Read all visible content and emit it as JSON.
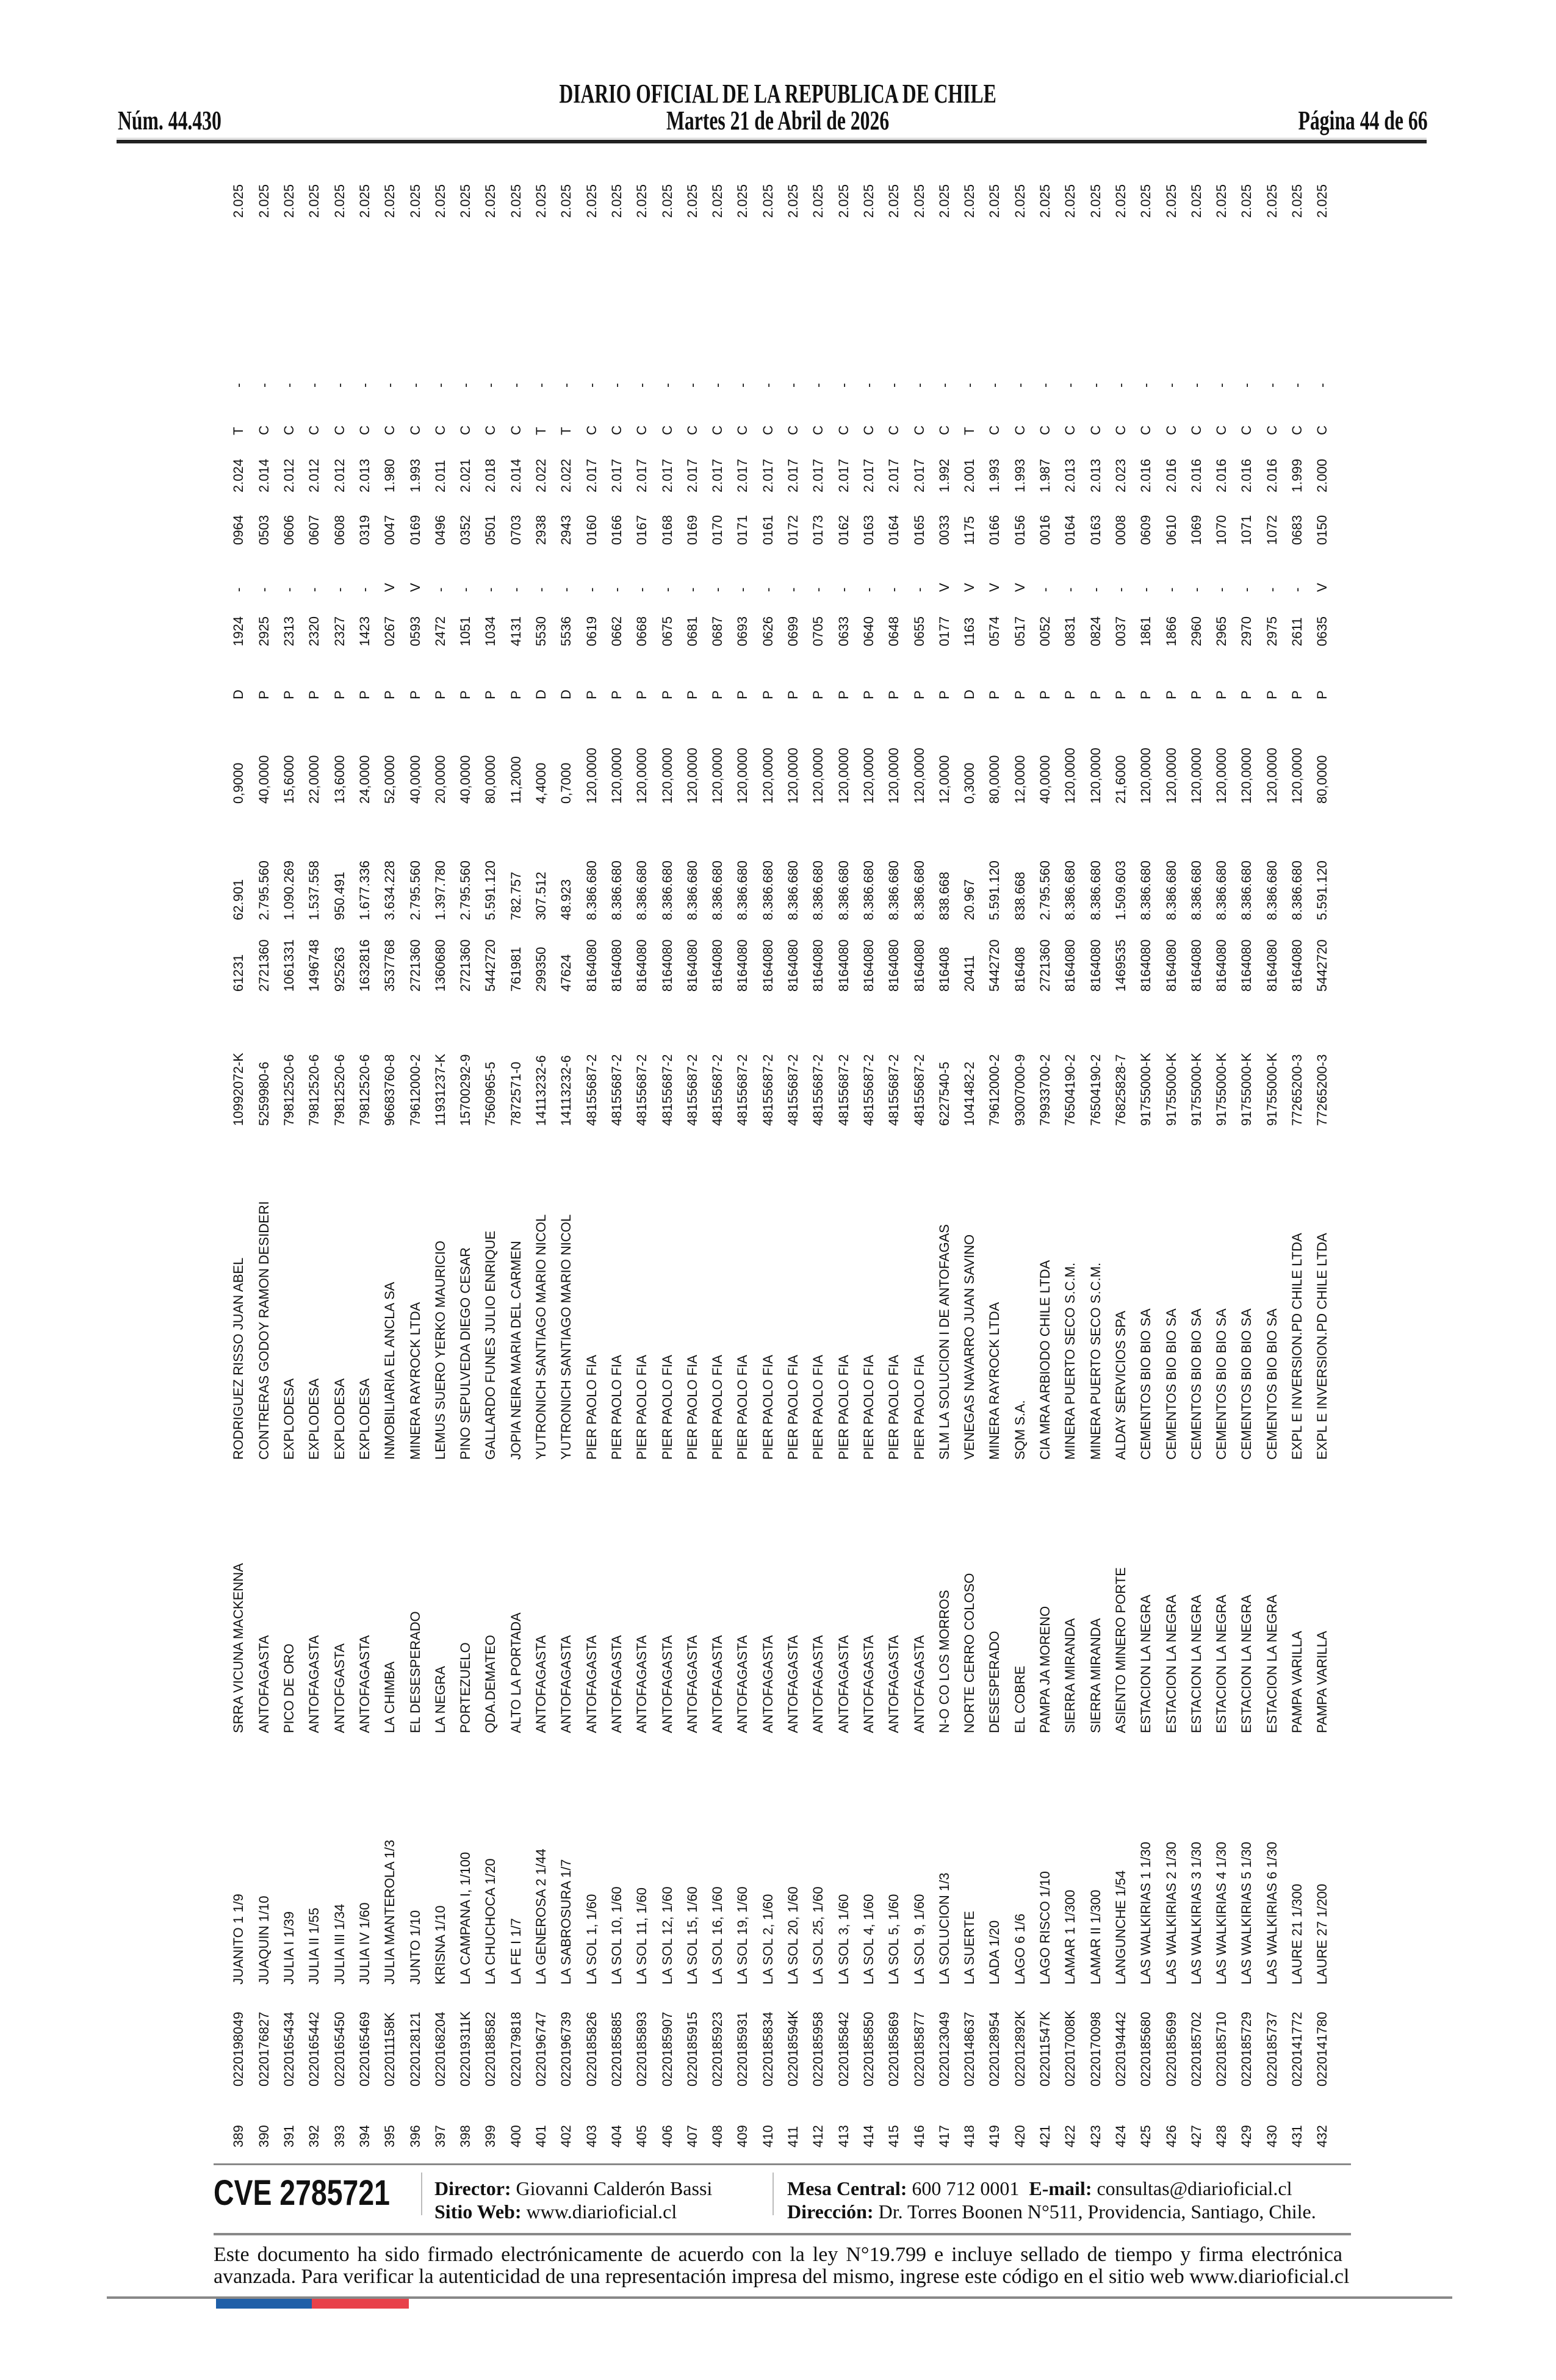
{
  "header": {
    "title": "DIARIO OFICIAL DE LA REPUBLICA DE CHILE",
    "issue": "Núm. 44.430",
    "date": "Martes 21 de Abril de 2026",
    "page": "Página 44 de 66"
  },
  "rows": [
    [
      "389",
      "0220198049",
      "JUANITO 1 1/9",
      "SRRA VICUNA MACKENNA",
      "RODRIGUEZ RISSO JUAN ABEL",
      "10992072-K",
      "61231",
      "62.901",
      "0,9000",
      "D",
      "1924",
      "-",
      "0964",
      "2.024",
      "T",
      "-",
      "2.025"
    ],
    [
      "390",
      "0220176827",
      "JUAQUIN 1/10",
      "ANTOFAGASTA",
      "CONTRERAS GODOY RAMON DESIDERI",
      "5259980-6",
      "2721360",
      "2.795.560",
      "40,0000",
      "P",
      "2925",
      "-",
      "0503",
      "2.014",
      "C",
      "-",
      "2.025"
    ],
    [
      "391",
      "0220165434",
      "JULIA I 1/39",
      "PICO DE ORO",
      "EXPLODESA",
      "79812520-6",
      "1061331",
      "1.090.269",
      "15,6000",
      "P",
      "2313",
      "-",
      "0606",
      "2.012",
      "C",
      "-",
      "2.025"
    ],
    [
      "392",
      "0220165442",
      "JULIA II 1/55",
      "ANTOFAGASTA",
      "EXPLODESA",
      "79812520-6",
      "1496748",
      "1.537.558",
      "22,0000",
      "P",
      "2320",
      "-",
      "0607",
      "2.012",
      "C",
      "-",
      "2.025"
    ],
    [
      "393",
      "0220165450",
      "JULIA III 1/34",
      "ANTOFGASTA",
      "EXPLODESA",
      "79812520-6",
      "925263",
      "950.491",
      "13,6000",
      "P",
      "2327",
      "-",
      "0608",
      "2.012",
      "C",
      "-",
      "2.025"
    ],
    [
      "394",
      "0220165469",
      "JULIA IV 1/60",
      "ANTOFAGASTA",
      "EXPLODESA",
      "79812520-6",
      "1632816",
      "1.677.336",
      "24,0000",
      "P",
      "1423",
      "-",
      "0319",
      "2.013",
      "C",
      "-",
      "2.025"
    ],
    [
      "395",
      "022011158K",
      "JULIA MANTEROLA 1/3",
      "LA CHIMBA",
      "INMOBILIARIA EL ANCLA SA",
      "96683760-8",
      "3537768",
      "3.634.228",
      "52,0000",
      "P",
      "0267",
      "V",
      "0047",
      "1.980",
      "C",
      "-",
      "2.025"
    ],
    [
      "396",
      "0220128121",
      "JUNTO 1/10",
      "EL DESESPERADO",
      "MINERA RAYROCK LTDA",
      "79612000-2",
      "2721360",
      "2.795.560",
      "40,0000",
      "P",
      "0593",
      "V",
      "0169",
      "1.993",
      "C",
      "-",
      "2.025"
    ],
    [
      "397",
      "0220168204",
      "KRISNA 1/10",
      "LA NEGRA",
      "LEMUS SUERO YERKO MAURICIO",
      "11931237-K",
      "1360680",
      "1.397.780",
      "20,0000",
      "P",
      "2472",
      "-",
      "0496",
      "2.011",
      "C",
      "-",
      "2.025"
    ],
    [
      "398",
      "022019311K",
      "LA CAMPANA I, 1/100",
      "PORTEZUELO",
      "PINO SEPULVEDA DIEGO CESAR",
      "15700292-9",
      "2721360",
      "2.795.560",
      "40,0000",
      "P",
      "1051",
      "-",
      "0352",
      "2.021",
      "C",
      "-",
      "2.025"
    ],
    [
      "399",
      "0220188582",
      "LA CHUCHOCA 1/20",
      "QDA.DEMATEO",
      "GALLARDO FUNES JULIO ENRIQUE",
      "7560965-5",
      "5442720",
      "5.591.120",
      "80,0000",
      "P",
      "1034",
      "-",
      "0501",
      "2.018",
      "C",
      "-",
      "2.025"
    ],
    [
      "400",
      "0220179818",
      "LA FE I 1/7",
      "ALTO LA PORTADA",
      "JOPIA NEIRA MARIA DEL CARMEN",
      "7872571-0",
      "761981",
      "782.757",
      "11,2000",
      "P",
      "4131",
      "-",
      "0703",
      "2.014",
      "C",
      "-",
      "2.025"
    ],
    [
      "401",
      "0220196747",
      "LA GENEROSA 2 1/44",
      "ANTOFAGASTA",
      "YUTRONICH SANTIAGO MARIO NICOL",
      "14113232-6",
      "299350",
      "307.512",
      "4,4000",
      "D",
      "5530",
      "-",
      "2938",
      "2.022",
      "T",
      "-",
      "2.025"
    ],
    [
      "402",
      "0220196739",
      "LA SABROSURA 1/7",
      "ANTOFAGASTA",
      "YUTRONICH SANTIAGO MARIO NICOL",
      "14113232-6",
      "47624",
      "48.923",
      "0,7000",
      "D",
      "5536",
      "-",
      "2943",
      "2.022",
      "T",
      "-",
      "2.025"
    ],
    [
      "403",
      "0220185826",
      "LA SOL 1, 1/60",
      "ANTOFAGASTA",
      "PIER PAOLO FIA",
      "48155687-2",
      "8164080",
      "8.386.680",
      "120,0000",
      "P",
      "0619",
      "-",
      "0160",
      "2.017",
      "C",
      "-",
      "2.025"
    ],
    [
      "404",
      "0220185885",
      "LA SOL 10, 1/60",
      "ANTOFAGASTA",
      "PIER PAOLO FIA",
      "48155687-2",
      "8164080",
      "8.386.680",
      "120,0000",
      "P",
      "0662",
      "-",
      "0166",
      "2.017",
      "C",
      "-",
      "2.025"
    ],
    [
      "405",
      "0220185893",
      "LA SOL 11, 1/60",
      "ANTOFAGASTA",
      "PIER PAOLO FIA",
      "48155687-2",
      "8164080",
      "8.386.680",
      "120,0000",
      "P",
      "0668",
      "-",
      "0167",
      "2.017",
      "C",
      "-",
      "2.025"
    ],
    [
      "406",
      "0220185907",
      "LA SOL 12, 1/60",
      "ANTOFAGASTA",
      "PIER PAOLO FIA",
      "48155687-2",
      "8164080",
      "8.386.680",
      "120,0000",
      "P",
      "0675",
      "-",
      "0168",
      "2.017",
      "C",
      "-",
      "2.025"
    ],
    [
      "407",
      "0220185915",
      "LA SOL 15, 1/60",
      "ANTOFAGASTA",
      "PIER PAOLO FIA",
      "48155687-2",
      "8164080",
      "8.386.680",
      "120,0000",
      "P",
      "0681",
      "-",
      "0169",
      "2.017",
      "C",
      "-",
      "2.025"
    ],
    [
      "408",
      "0220185923",
      "LA SOL 16, 1/60",
      "ANTOFAGASTA",
      "PIER PAOLO FIA",
      "48155687-2",
      "8164080",
      "8.386.680",
      "120,0000",
      "P",
      "0687",
      "-",
      "0170",
      "2.017",
      "C",
      "-",
      "2.025"
    ],
    [
      "409",
      "0220185931",
      "LA SOL 19, 1/60",
      "ANTOFAGASTA",
      "PIER PAOLO FIA",
      "48155687-2",
      "8164080",
      "8.386.680",
      "120,0000",
      "P",
      "0693",
      "-",
      "0171",
      "2.017",
      "C",
      "-",
      "2.025"
    ],
    [
      "410",
      "0220185834",
      "LA SOL 2, 1/60",
      "ANTOFAGASTA",
      "PIER PAOLO FIA",
      "48155687-2",
      "8164080",
      "8.386.680",
      "120,0000",
      "P",
      "0626",
      "-",
      "0161",
      "2.017",
      "C",
      "-",
      "2.025"
    ],
    [
      "411",
      "022018594K",
      "LA SOL 20, 1/60",
      "ANTOFAGASTA",
      "PIER PAOLO FIA",
      "48155687-2",
      "8164080",
      "8.386.680",
      "120,0000",
      "P",
      "0699",
      "-",
      "0172",
      "2.017",
      "C",
      "-",
      "2.025"
    ],
    [
      "412",
      "0220185958",
      "LA SOL 25, 1/60",
      "ANTOFAGASTA",
      "PIER PAOLO FIA",
      "48155687-2",
      "8164080",
      "8.386.680",
      "120,0000",
      "P",
      "0705",
      "-",
      "0173",
      "2.017",
      "C",
      "-",
      "2.025"
    ],
    [
      "413",
      "0220185842",
      "LA SOL 3, 1/60",
      "ANTOFAGASTA",
      "PIER PAOLO FIA",
      "48155687-2",
      "8164080",
      "8.386.680",
      "120,0000",
      "P",
      "0633",
      "-",
      "0162",
      "2.017",
      "C",
      "-",
      "2.025"
    ],
    [
      "414",
      "0220185850",
      "LA SOL 4, 1/60",
      "ANTOFAGASTA",
      "PIER PAOLO FIA",
      "48155687-2",
      "8164080",
      "8.386.680",
      "120,0000",
      "P",
      "0640",
      "-",
      "0163",
      "2.017",
      "C",
      "-",
      "2.025"
    ],
    [
      "415",
      "0220185869",
      "LA SOL 5, 1/60",
      "ANTOFAGASTA",
      "PIER PAOLO FIA",
      "48155687-2",
      "8164080",
      "8.386.680",
      "120,0000",
      "P",
      "0648",
      "-",
      "0164",
      "2.017",
      "C",
      "-",
      "2.025"
    ],
    [
      "416",
      "0220185877",
      "LA SOL 9, 1/60",
      "ANTOFAGASTA",
      "PIER PAOLO FIA",
      "48155687-2",
      "8164080",
      "8.386.680",
      "120,0000",
      "P",
      "0655",
      "-",
      "0165",
      "2.017",
      "C",
      "-",
      "2.025"
    ],
    [
      "417",
      "0220123049",
      "LA SOLUCION 1/3",
      "N-O CO LOS MORROS",
      "SLM LA SOLUCION I DE ANTOFAGAS",
      "6227540-5",
      "816408",
      "838.668",
      "12,0000",
      "P",
      "0177",
      "V",
      "0033",
      "1.992",
      "C",
      "-",
      "2.025"
    ],
    [
      "418",
      "0220148637",
      "LA SUERTE",
      "NORTE CERRO COLOSO",
      "VENEGAS NAVARRO JUAN SAVINO",
      "1041482-2",
      "20411",
      "20.967",
      "0,3000",
      "D",
      "1163",
      "V",
      "1175",
      "2.001",
      "T",
      "-",
      "2.025"
    ],
    [
      "419",
      "0220128954",
      "LADA 1/20",
      "DESESPERADO",
      "MINERA RAYROCK LTDA",
      "79612000-2",
      "5442720",
      "5.591.120",
      "80,0000",
      "P",
      "0574",
      "V",
      "0166",
      "1.993",
      "C",
      "-",
      "2.025"
    ],
    [
      "420",
      "022012892K",
      "LAGO 6 1/6",
      "EL COBRE",
      "SQM S.A.",
      "93007000-9",
      "816408",
      "838.668",
      "12,0000",
      "P",
      "0517",
      "V",
      "0156",
      "1.993",
      "C",
      "-",
      "2.025"
    ],
    [
      "421",
      "022011547K",
      "LAGO RISCO 1/10",
      "PAMPA JA MORENO",
      "CIA MRA ARBIODO CHILE LTDA",
      "79933700-2",
      "2721360",
      "2.795.560",
      "40,0000",
      "P",
      "0052",
      "-",
      "0016",
      "1.987",
      "C",
      "-",
      "2.025"
    ],
    [
      "422",
      "022017008K",
      "LAMAR 1 1/300",
      "SIERRA MIRANDA",
      "MINERA PUERTO SECO S.C.M.",
      "76504190-2",
      "8164080",
      "8.386.680",
      "120,0000",
      "P",
      "0831",
      "-",
      "0164",
      "2.013",
      "C",
      "-",
      "2.025"
    ],
    [
      "423",
      "0220170098",
      "LAMAR II 1/300",
      "SIERRA MIRANDA",
      "MINERA PUERTO SECO S.C.M.",
      "76504190-2",
      "8164080",
      "8.386.680",
      "120,0000",
      "P",
      "0824",
      "-",
      "0163",
      "2.013",
      "C",
      "-",
      "2.025"
    ],
    [
      "424",
      "0220194442",
      "LANGUNCHE 1/54",
      "ASIENTO MINERO PORTE",
      "ALDAY SERVICIOS SPA",
      "76825828-7",
      "1469535",
      "1.509.603",
      "21,6000",
      "P",
      "0037",
      "-",
      "0008",
      "2.023",
      "C",
      "-",
      "2.025"
    ],
    [
      "425",
      "0220185680",
      "LAS WALKIRIAS 1 1/30",
      "ESTACION LA NEGRA",
      "CEMENTOS BIO BIO SA",
      "91755000-K",
      "8164080",
      "8.386.680",
      "120,0000",
      "P",
      "1861",
      "-",
      "0609",
      "2.016",
      "C",
      "-",
      "2.025"
    ],
    [
      "426",
      "0220185699",
      "LAS WALKIRIAS 2 1/30",
      "ESTACION LA NEGRA",
      "CEMENTOS BIO BIO SA",
      "91755000-K",
      "8164080",
      "8.386.680",
      "120,0000",
      "P",
      "1866",
      "-",
      "0610",
      "2.016",
      "C",
      "-",
      "2.025"
    ],
    [
      "427",
      "0220185702",
      "LAS WALKIRIAS 3 1/30",
      "ESTACION LA NEGRA",
      "CEMENTOS BIO BIO SA",
      "91755000-K",
      "8164080",
      "8.386.680",
      "120,0000",
      "P",
      "2960",
      "-",
      "1069",
      "2.016",
      "C",
      "-",
      "2.025"
    ],
    [
      "428",
      "0220185710",
      "LAS WALKIRIAS 4 1/30",
      "ESTACION LA NEGRA",
      "CEMENTOS BIO BIO SA",
      "91755000-K",
      "8164080",
      "8.386.680",
      "120,0000",
      "P",
      "2965",
      "-",
      "1070",
      "2.016",
      "C",
      "-",
      "2.025"
    ],
    [
      "429",
      "0220185729",
      "LAS WALKIRIAS 5 1/30",
      "ESTACION LA NEGRA",
      "CEMENTOS BIO BIO SA",
      "91755000-K",
      "8164080",
      "8.386.680",
      "120,0000",
      "P",
      "2970",
      "-",
      "1071",
      "2.016",
      "C",
      "-",
      "2.025"
    ],
    [
      "430",
      "0220185737",
      "LAS WALKIRIAS 6 1/30",
      "ESTACION LA NEGRA",
      "CEMENTOS BIO BIO SA",
      "91755000-K",
      "8164080",
      "8.386.680",
      "120,0000",
      "P",
      "2975",
      "-",
      "1072",
      "2.016",
      "C",
      "-",
      "2.025"
    ],
    [
      "431",
      "0220141772",
      "LAURE 21 1/300",
      "PAMPA VARILLA",
      "EXPL E INVERSION.PD CHILE LTDA",
      "77265200-3",
      "8164080",
      "8.386.680",
      "120,0000",
      "P",
      "2611",
      "-",
      "0683",
      "1.999",
      "C",
      "-",
      "2.025"
    ],
    [
      "432",
      "0220141780",
      "LAURE 27 1/200",
      "PAMPA VARILLA",
      "EXPL E INVERSION.PD CHILE LTDA",
      "77265200-3",
      "5442720",
      "5.591.120",
      "80,0000",
      "P",
      "0635",
      "V",
      "0150",
      "2.000",
      "C",
      "-",
      "2.025"
    ]
  ],
  "footer": {
    "cve": "CVE 2785721",
    "director_label": "Director:",
    "director": "Giovanni Calderón Bassi",
    "web_label": "Sitio Web:",
    "web": "www.diarioficial.cl",
    "phone_label": "Mesa Central:",
    "phone": "600 712 0001",
    "email_label": "E-mail:",
    "email": "consultas@diarioficial.cl",
    "address_label": "Dirección:",
    "address": "Dr. Torres Boonen N°511, Providencia, Santiago, Chile.",
    "disclaimer_1": "Este documento ha sido firmado electrónicamente de acuerdo con la ley N°19.799 e incluye sellado de tiempo y firma electrónica",
    "disclaimer_2": "avanzada. Para verificar la autenticidad de una representación impresa del mismo, ingrese este código en el sitio web www.diarioficial.cl"
  },
  "colors": {
    "flag_blue": "#1f5fa8",
    "flag_red": "#e8414a",
    "rule": "#888888"
  }
}
